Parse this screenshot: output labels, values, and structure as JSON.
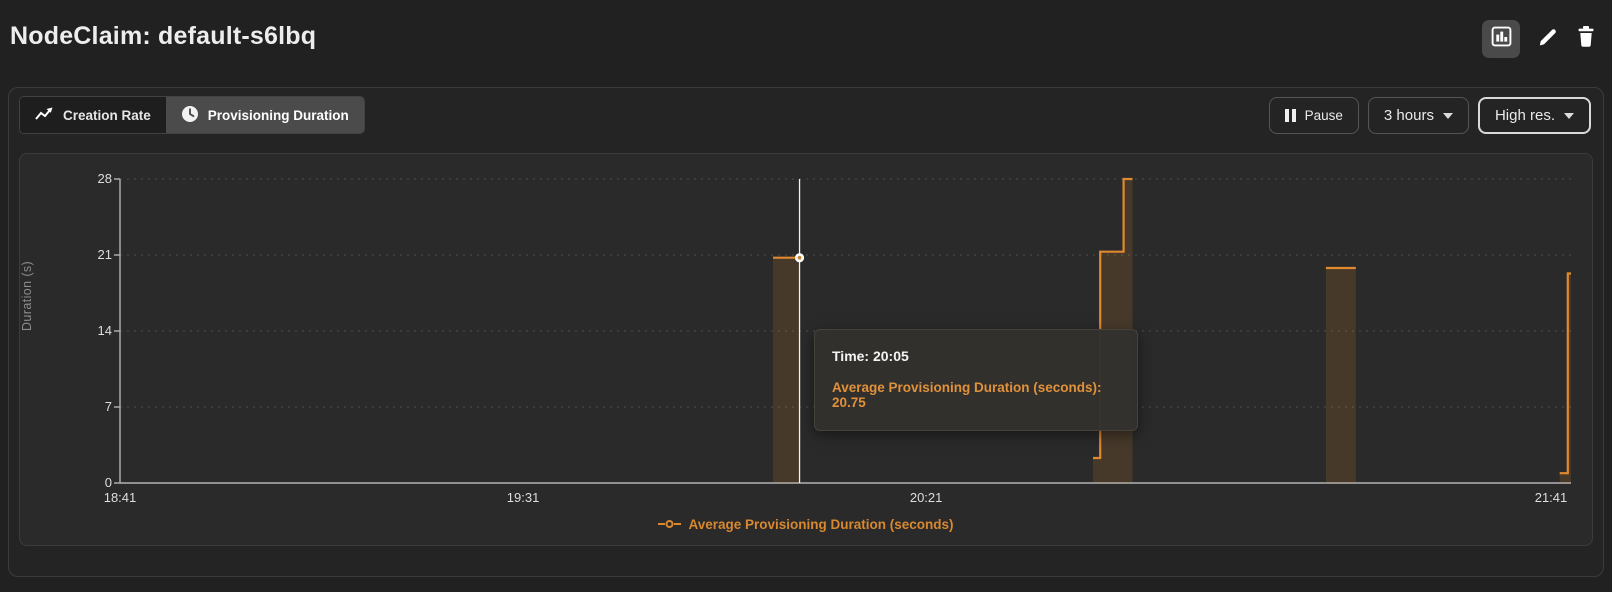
{
  "header": {
    "title": "NodeClaim: default-s6lbq"
  },
  "toolbar": {
    "tabs": [
      {
        "label": "Creation Rate",
        "icon": "trend-line-icon",
        "selected": false
      },
      {
        "label": "Provisioning Duration",
        "icon": "clock-icon",
        "selected": true
      }
    ],
    "pause_label": "Pause",
    "interval_label": "3 hours",
    "resolution_label": "High res."
  },
  "tooltip": {
    "line1": "Time: 20:05",
    "line2": "Average Provisioning Duration (seconds): 20.75",
    "hover": {
      "time": "20:05",
      "minutes": 84.3,
      "value": 20.75
    }
  },
  "chart_data": {
    "type": "line",
    "step": true,
    "title": "",
    "xlabel": "",
    "ylabel": "Duration (s)",
    "ylim": [
      0,
      28
    ],
    "y_ticks": [
      0,
      7,
      14,
      21,
      28
    ],
    "x_range_minutes": 180,
    "x_ticks": [
      {
        "label": "18:41",
        "minutes": 0
      },
      {
        "label": "19:31",
        "minutes": 50
      },
      {
        "label": "20:21",
        "minutes": 100
      },
      {
        "label": "21:41",
        "minutes": 180
      }
    ],
    "grid": "horizontal-dotted",
    "legend": {
      "position": "bottom",
      "entries": [
        "Average Provisioning Duration (seconds)"
      ]
    },
    "series": [
      {
        "name": "Average Provisioning Duration (seconds)",
        "color": "#e0892e",
        "fill_opacity": 0.16,
        "segments": [
          [
            [
              81.0,
              20.75
            ],
            [
              84.3,
              20.75
            ]
          ],
          [
            [
              120.7,
              2.3
            ],
            [
              121.6,
              2.3
            ],
            [
              121.6,
              21.3
            ],
            [
              124.5,
              21.3
            ],
            [
              124.5,
              28
            ],
            [
              125.6,
              28
            ]
          ],
          [
            [
              149.6,
              19.8
            ],
            [
              153.3,
              19.8
            ]
          ],
          [
            [
              178.6,
              0.9
            ],
            [
              179.6,
              0.9
            ],
            [
              179.6,
              19.3
            ],
            [
              180,
              19.3
            ]
          ]
        ]
      }
    ]
  },
  "colors": {
    "accent_orange": "#e0892e",
    "cursor_line": "#f2f2f2",
    "grid_line": "#505050",
    "axis_line": "#b3b3b3"
  }
}
